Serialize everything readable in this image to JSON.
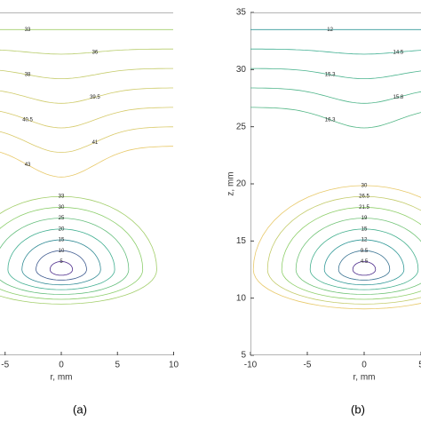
{
  "chart_data": [
    {
      "type": "contour",
      "panel_label": "(a)",
      "xlabel": "r, mm",
      "xlim": [
        -10,
        10
      ],
      "ylim": [
        5,
        35
      ],
      "xticks": [
        -5,
        0,
        5,
        10
      ],
      "core_levels": [
        5,
        10,
        15,
        20,
        25,
        30,
        33
      ],
      "upper_levels": [
        33,
        36,
        38,
        39.5,
        40.5,
        41,
        43
      ],
      "colormap": [
        "#4b2a8a",
        "#2fa89a",
        "#8fcf6a",
        "#e8c96a"
      ]
    },
    {
      "type": "contour",
      "panel_label": "(b)",
      "xlabel": "r, mm",
      "ylabel": "z, mm",
      "xlim": [
        -10,
        10
      ],
      "ylim": [
        5,
        35
      ],
      "xticks": [
        -10,
        -5,
        0,
        5
      ],
      "yticks": [
        5,
        10,
        15,
        20,
        25,
        30,
        35
      ],
      "core_levels": [
        4.5,
        9.5,
        12,
        15,
        19,
        21.5,
        26.5,
        30
      ],
      "upper_levels": [
        12,
        14.5,
        15.3,
        15.8,
        16.3
      ],
      "colormap": [
        "#4b2a8a",
        "#2fa89a",
        "#8fcf6a",
        "#e8c96a"
      ]
    }
  ]
}
